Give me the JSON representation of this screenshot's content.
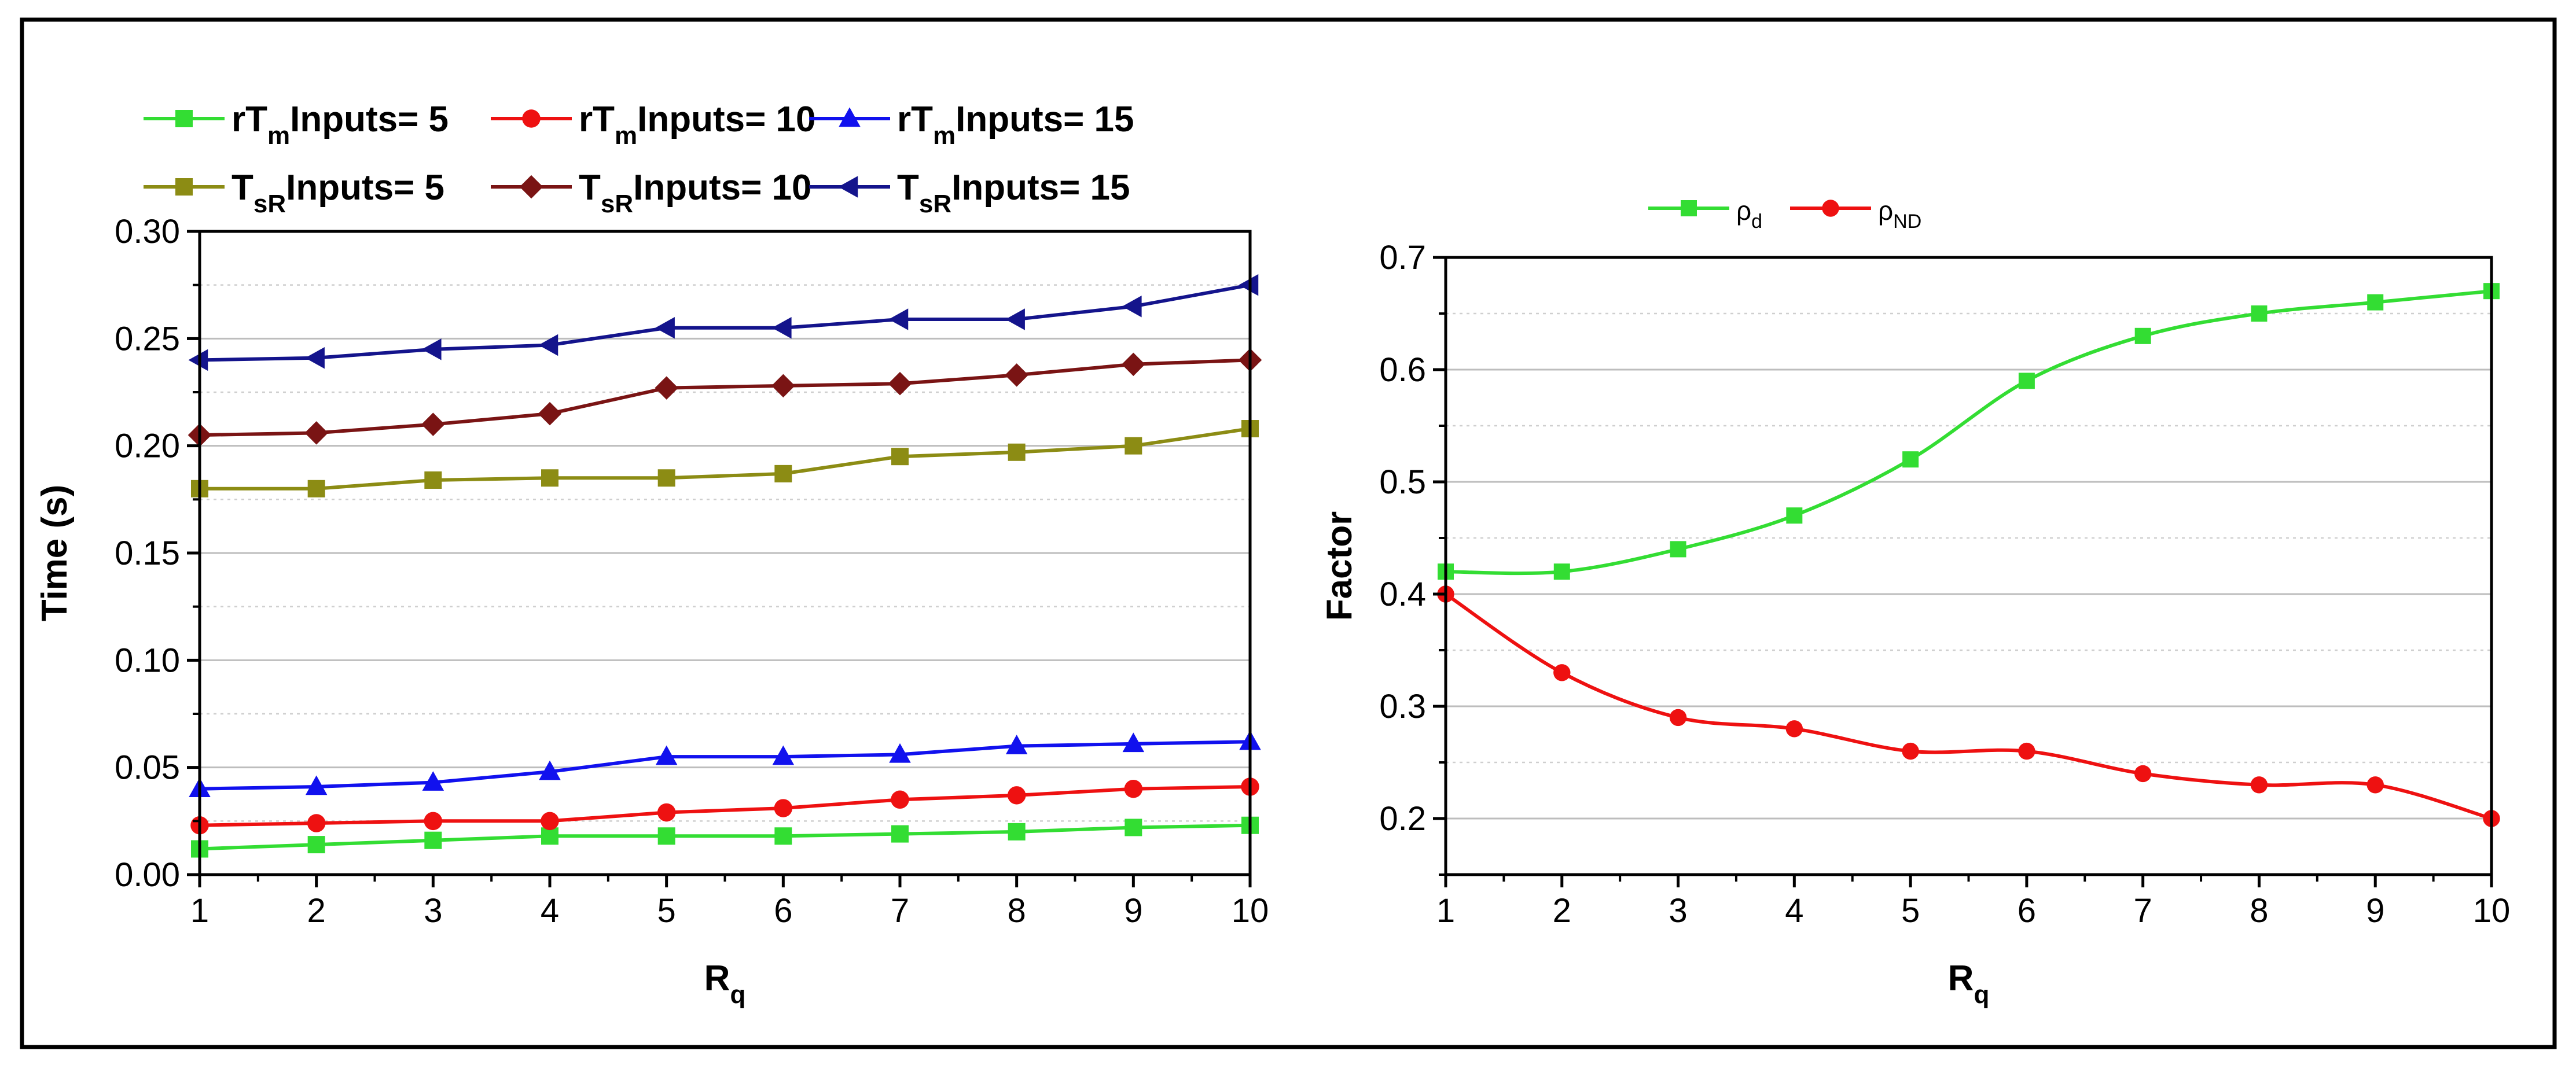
{
  "chart_data": [
    {
      "type": "line",
      "xlabel_main": "R",
      "xlabel_sub": "q",
      "ylabel": "Time (s)",
      "x": [
        1,
        2,
        3,
        4,
        5,
        6,
        7,
        8,
        9,
        10
      ],
      "xticks": [
        "1",
        "2",
        "3",
        "4",
        "5",
        "6",
        "7",
        "8",
        "9",
        "10"
      ],
      "xlim": [
        1,
        10
      ],
      "ylim": [
        0,
        0.3
      ],
      "yticks": [
        "0.00",
        "0.05",
        "0.10",
        "0.15",
        "0.20",
        "0.25",
        "0.30"
      ],
      "ytick_values": [
        0,
        0.05,
        0.1,
        0.15,
        0.2,
        0.25,
        0.3
      ],
      "grid": true,
      "legend_position": "top",
      "series": [
        {
          "name_main": "rT",
          "name_sub": "m",
          "name_rest": "Inputs= 5",
          "color": "#33dd33",
          "marker": "square",
          "values": [
            0.012,
            0.014,
            0.016,
            0.018,
            0.018,
            0.018,
            0.019,
            0.02,
            0.022,
            0.023
          ]
        },
        {
          "name_main": "rT",
          "name_sub": "m",
          "name_rest": "Inputs= 10",
          "color": "#ee1111",
          "marker": "circle",
          "values": [
            0.023,
            0.024,
            0.025,
            0.025,
            0.029,
            0.031,
            0.035,
            0.037,
            0.04,
            0.041
          ]
        },
        {
          "name_main": "rT",
          "name_sub": "m",
          "name_rest": "Inputs= 15",
          "color": "#1111ee",
          "marker": "triangle-up",
          "values": [
            0.04,
            0.041,
            0.043,
            0.048,
            0.055,
            0.055,
            0.056,
            0.06,
            0.061,
            0.062
          ]
        },
        {
          "name_main": "T",
          "name_sub": "sR",
          "name_rest": "Inputs= 5",
          "color": "#8c8c14",
          "marker": "square",
          "values": [
            0.18,
            0.18,
            0.184,
            0.185,
            0.185,
            0.187,
            0.195,
            0.197,
            0.2,
            0.208
          ]
        },
        {
          "name_main": "T",
          "name_sub": "sR",
          "name_rest": "Inputs= 10",
          "color": "#7a1414",
          "marker": "diamond",
          "values": [
            0.205,
            0.206,
            0.21,
            0.215,
            0.227,
            0.228,
            0.229,
            0.233,
            0.238,
            0.24
          ]
        },
        {
          "name_main": "T",
          "name_sub": "sR",
          "name_rest": "Inputs= 15",
          "color": "#14148c",
          "marker": "triangle-left",
          "values": [
            0.24,
            0.241,
            0.245,
            0.247,
            0.255,
            0.255,
            0.259,
            0.259,
            0.265,
            0.275
          ]
        }
      ]
    },
    {
      "type": "line",
      "xlabel_main": "R",
      "xlabel_sub": "q",
      "ylabel": "Factor",
      "x": [
        1,
        2,
        3,
        4,
        5,
        6,
        7,
        8,
        9,
        10
      ],
      "xticks": [
        "1",
        "2",
        "3",
        "4",
        "5",
        "6",
        "7",
        "8",
        "9",
        "10"
      ],
      "xlim": [
        1,
        10
      ],
      "ylim": [
        0.15,
        0.7
      ],
      "yticks": [
        "0.2",
        "0.3",
        "0.4",
        "0.5",
        "0.6",
        "0.7"
      ],
      "ytick_values": [
        0.2,
        0.3,
        0.4,
        0.5,
        0.6,
        0.7
      ],
      "grid": true,
      "legend_position": "top",
      "series": [
        {
          "name_main": "ρ",
          "name_sub": "d",
          "name_rest": "",
          "color": "#33dd33",
          "marker": "square",
          "values": [
            0.42,
            0.42,
            0.44,
            0.47,
            0.52,
            0.59,
            0.63,
            0.65,
            0.66,
            0.67
          ]
        },
        {
          "name_main": "ρ",
          "name_sub": "ND",
          "name_rest": "",
          "color": "#ee1111",
          "marker": "circle",
          "values": [
            0.4,
            0.33,
            0.29,
            0.28,
            0.26,
            0.26,
            0.24,
            0.23,
            0.23,
            0.2
          ]
        }
      ]
    }
  ]
}
